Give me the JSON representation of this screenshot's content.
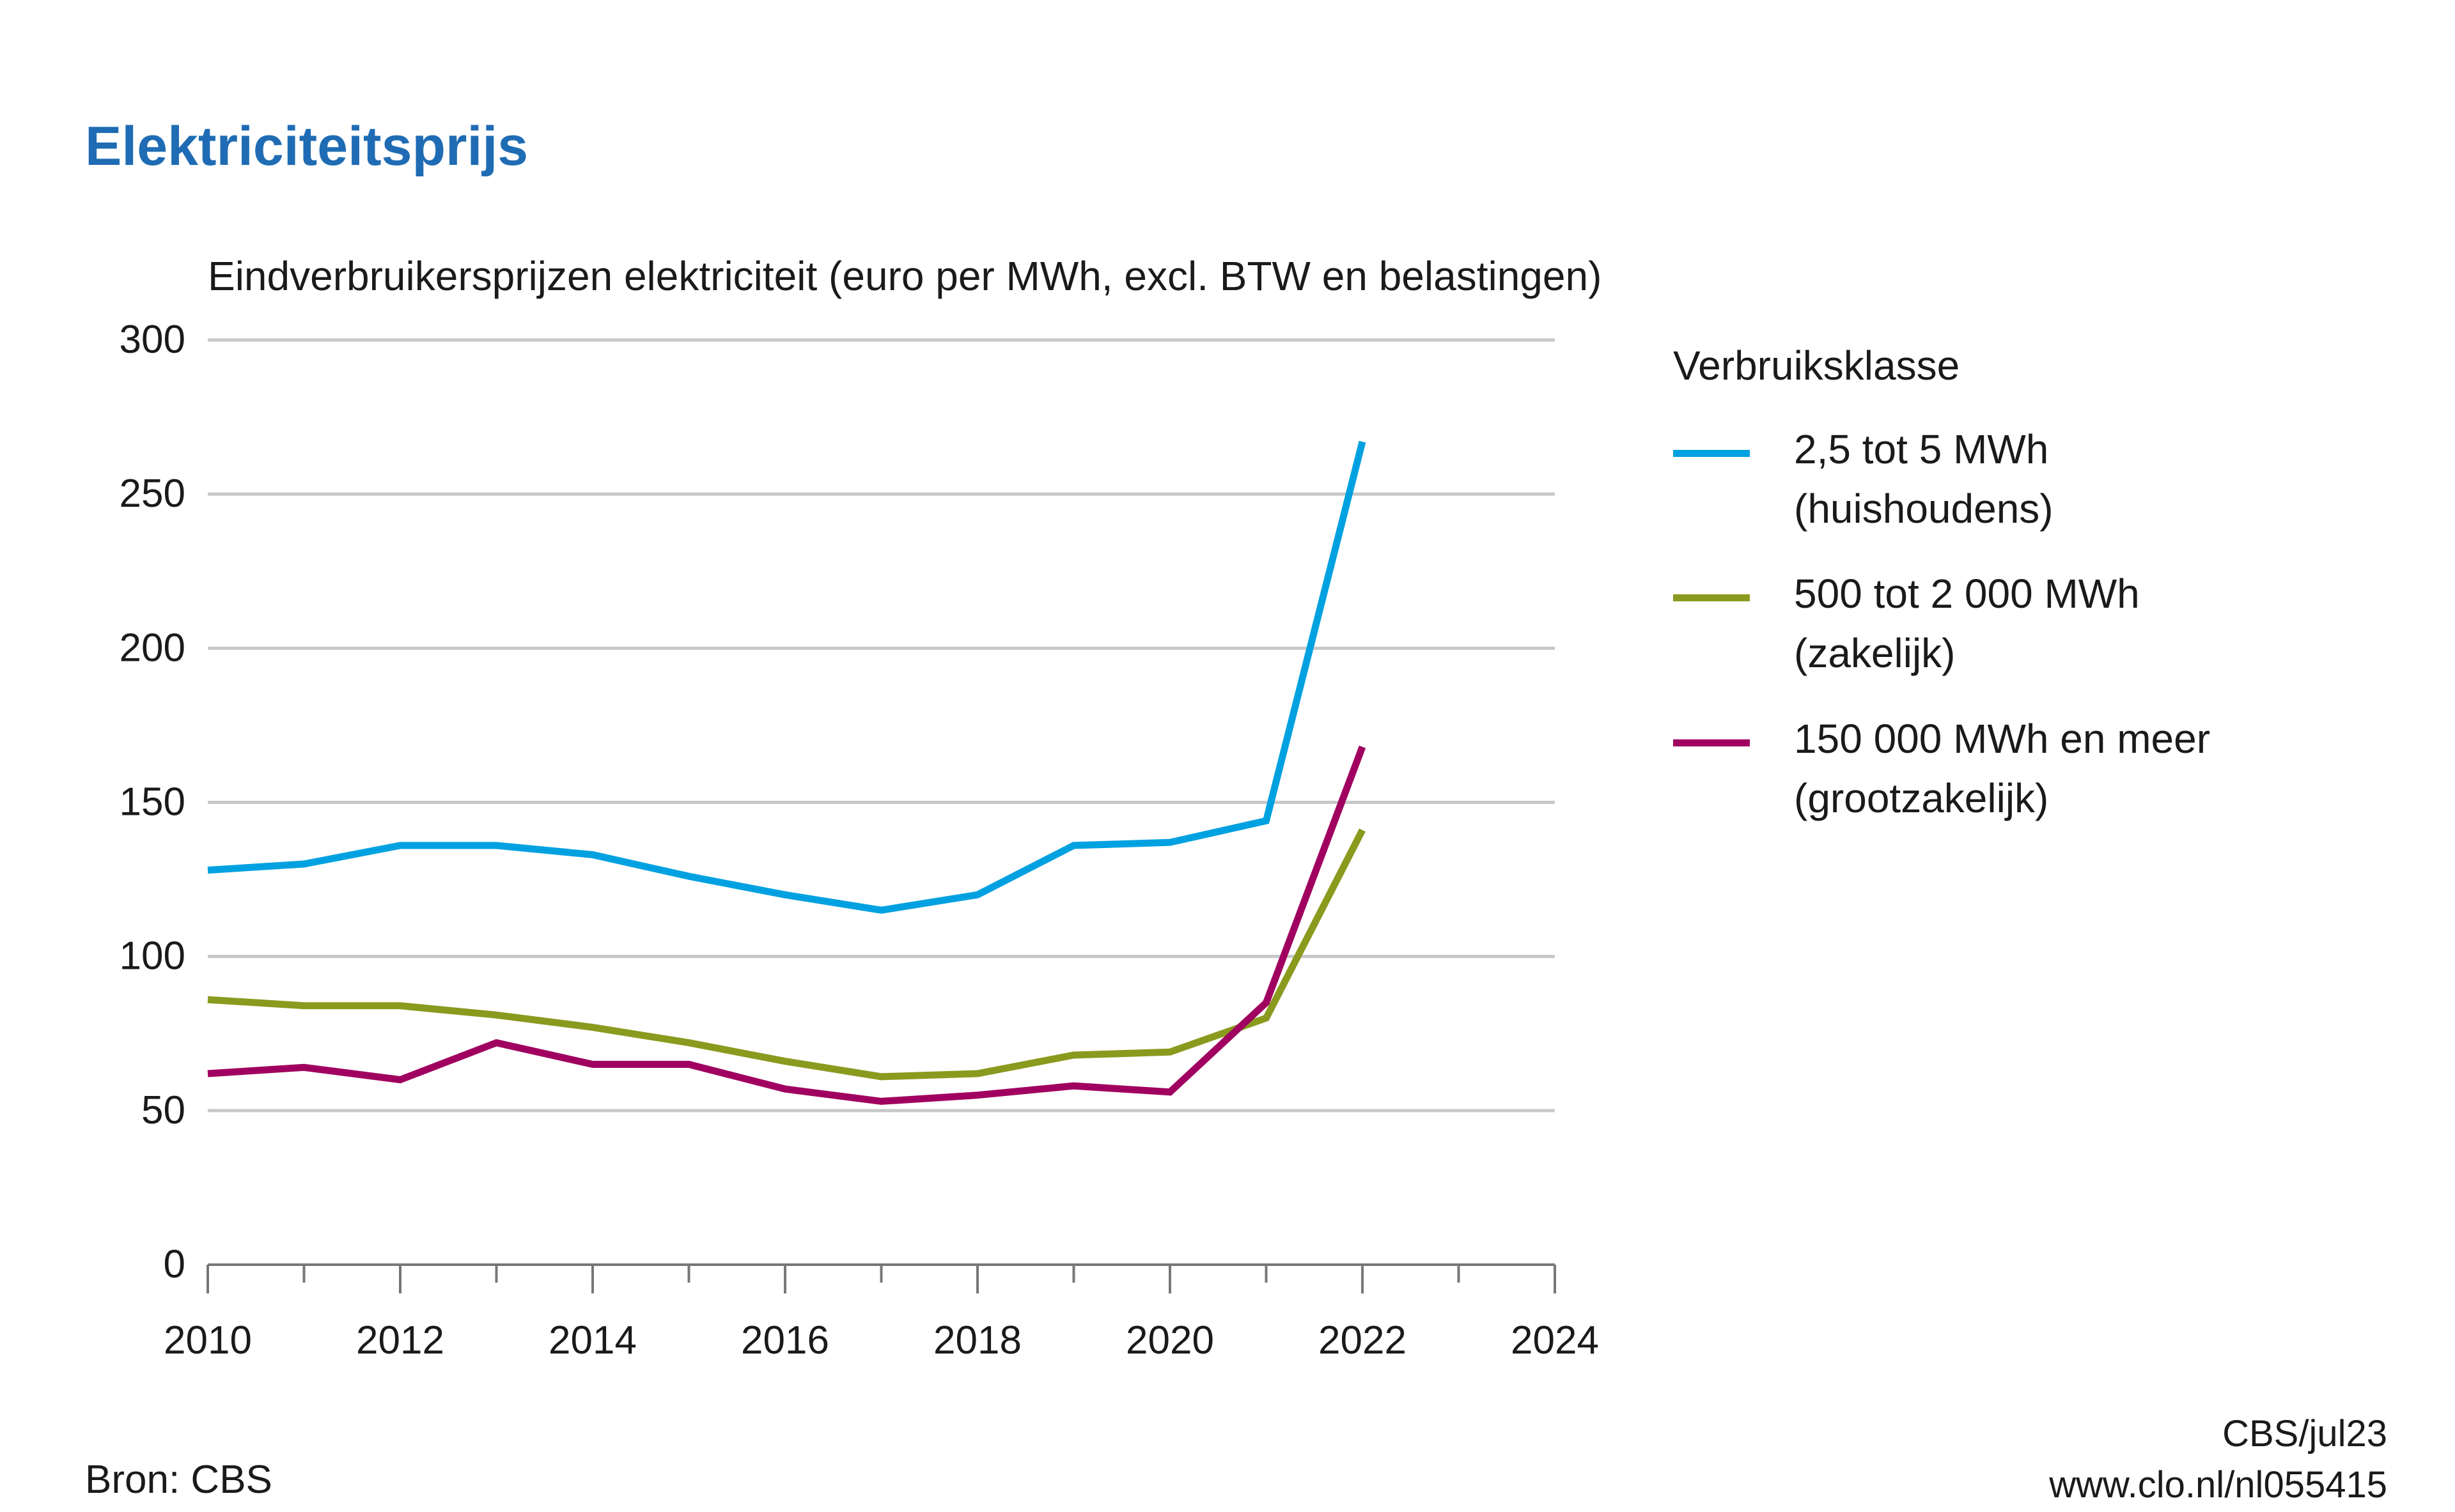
{
  "title": "Elektriciteitsprijs",
  "footer": {
    "source": "Bron: CBS",
    "credit": "CBS/jul23",
    "url": "www.clo.nl/nl055415"
  },
  "chart_data": {
    "type": "line",
    "title": "Elektriciteitsprijs",
    "ylabel": "Eindverbruikersprijzen elektriciteit (euro per MWh, excl. BTW en belastingen)",
    "xlabel": "",
    "xlim": [
      2010,
      2024
    ],
    "ylim": [
      0,
      300
    ],
    "x_ticks": [
      "2010",
      "2012",
      "2014",
      "2016",
      "2018",
      "2020",
      "2022",
      "2024"
    ],
    "y_ticks": [
      "0",
      "50",
      "100",
      "150",
      "200",
      "250",
      "300"
    ],
    "grid": "horizontal",
    "legend_title": "Verbruiksklasse",
    "legend_position": "right",
    "x": [
      2010,
      2011,
      2012,
      2013,
      2014,
      2015,
      2016,
      2017,
      2018,
      2019,
      2020,
      2021,
      2022
    ],
    "series": [
      {
        "name": "2,5 tot 5 MWh",
        "name_line2": "(huishoudens)",
        "color": "#00a1e1",
        "values": [
          128,
          130,
          136,
          136,
          133,
          126,
          120,
          115,
          120,
          136,
          137,
          144,
          267
        ]
      },
      {
        "name": "500 tot 2 000 MWh",
        "name_line2": "(zakelijk)",
        "color": "#8a9a1e",
        "values": [
          86,
          84,
          84,
          81,
          77,
          72,
          66,
          61,
          62,
          68,
          69,
          80,
          141
        ]
      },
      {
        "name": "150 000 MWh en meer",
        "name_line2": "(grootzakelijk)",
        "color": "#a0005f",
        "values": [
          62,
          64,
          60,
          72,
          65,
          65,
          57,
          53,
          55,
          58,
          56,
          85,
          168
        ]
      }
    ]
  }
}
